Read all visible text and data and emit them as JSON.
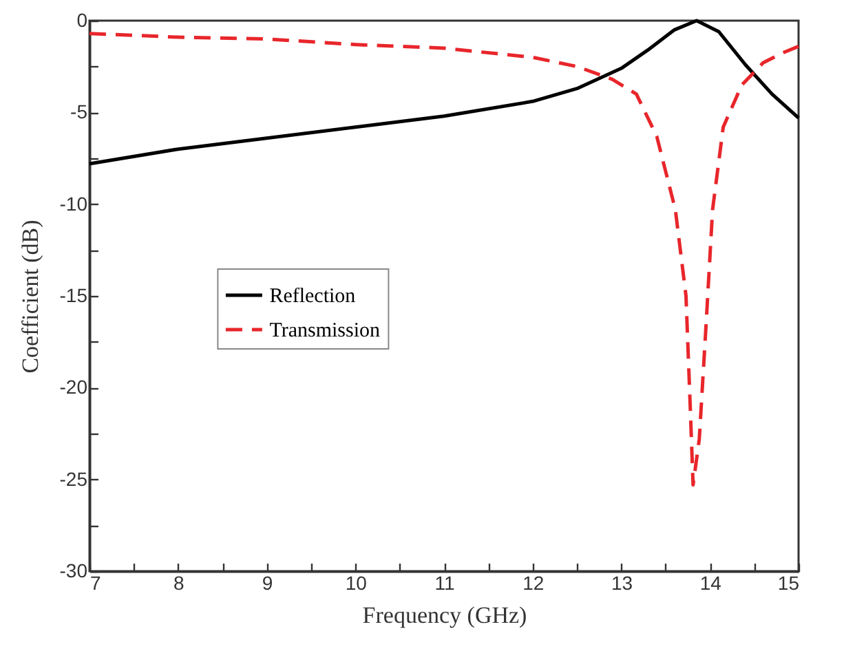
{
  "chart_data": {
    "type": "line",
    "xlabel": "Frequency (GHz)",
    "ylabel": "Coefficient (dB)",
    "xlim": [
      7,
      15
    ],
    "ylim": [
      -30,
      0
    ],
    "xticks": [
      7,
      {
        "value": 7.5,
        "label": null
      },
      8,
      {
        "value": 8.5,
        "label": null
      },
      9,
      {
        "value": 9.5,
        "label": null
      },
      10,
      {
        "value": 10.5,
        "label": null
      },
      11,
      {
        "value": 11.5,
        "label": null
      },
      12,
      {
        "value": 12.5,
        "label": null
      },
      13,
      {
        "value": 13.5,
        "label": null
      },
      14,
      {
        "value": 14.5,
        "label": null
      },
      15
    ],
    "yticks": [
      -30,
      {
        "value": -27.5,
        "label": null
      },
      -25,
      {
        "value": -22.5,
        "label": null
      },
      -20,
      {
        "value": -17.5,
        "label": null
      },
      -15,
      {
        "value": -12.5,
        "label": null
      },
      -10,
      {
        "value": -7.5,
        "label": null
      },
      -5,
      {
        "value": -2.5,
        "label": null
      },
      0
    ],
    "grid": false,
    "legend": "left",
    "marker": "none",
    "series": [
      {
        "name": "Reflection",
        "color": "#000000",
        "line_style": "solid",
        "x": [
          7,
          8,
          9,
          10,
          11,
          12,
          12.5,
          13,
          13.3,
          13.6,
          13.85,
          14.1,
          14.4,
          14.7,
          15
        ],
        "values": [
          -7.8,
          -7.0,
          -6.4,
          -5.8,
          -5.2,
          -4.4,
          -3.7,
          -2.6,
          -1.6,
          -0.5,
          0,
          -0.6,
          -2.4,
          -4.0,
          -5.3
        ]
      },
      {
        "name": "Transmission",
        "color": "#e8262b",
        "line_style": "dashed",
        "x": [
          7,
          8,
          9,
          10,
          11,
          12,
          12.5,
          12.9,
          13.17,
          13.4,
          13.61,
          13.73,
          13.78,
          13.81,
          13.88,
          13.96,
          14.03,
          14.15,
          14.36,
          14.6,
          14.8,
          15
        ],
        "values": [
          -0.7,
          -0.9,
          -1.0,
          -1.3,
          -1.5,
          -2.0,
          -2.5,
          -3.2,
          -4.0,
          -6.3,
          -10.3,
          -15,
          -21.3,
          -25.3,
          -22.8,
          -16.3,
          -10.3,
          -5.8,
          -3.5,
          -2.3,
          -1.8,
          -1.4
        ]
      }
    ]
  }
}
